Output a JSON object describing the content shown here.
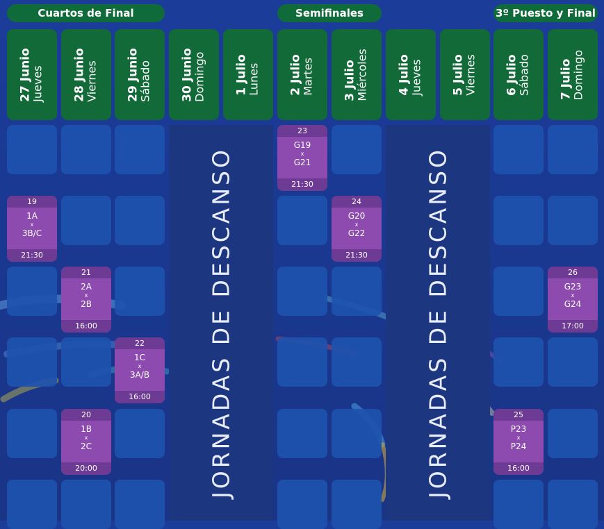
{
  "phases": {
    "quarterfinals": "Cuartos de Final",
    "semifinals": "Semifinales",
    "final": "3º Puesto y Final"
  },
  "days": [
    {
      "date": "27 Junio",
      "weekday": "Jueves"
    },
    {
      "date": "28 Junio",
      "weekday": "Viernes"
    },
    {
      "date": "29 Junio",
      "weekday": "Sábado"
    },
    {
      "date": "30 Junio",
      "weekday": "Domingo"
    },
    {
      "date": "1 Julio",
      "weekday": "Lunes"
    },
    {
      "date": "2 Julio",
      "weekday": "Martes"
    },
    {
      "date": "3 Julio",
      "weekday": "Miércoles"
    },
    {
      "date": "4 Julio",
      "weekday": "Jueves"
    },
    {
      "date": "5 Julio",
      "weekday": "Viernes"
    },
    {
      "date": "6 Julio",
      "weekday": "Sábado"
    },
    {
      "date": "7 Julio",
      "weekday": "Domingo"
    }
  ],
  "rest_label": "JORNADAS DE DESCANSO",
  "matches": [
    {
      "number": "19",
      "team1": "1A",
      "vs": "x",
      "team2": "3B/C",
      "time": "21:30"
    },
    {
      "number": "21",
      "team1": "2A",
      "vs": "x",
      "team2": "2B",
      "time": "16:00"
    },
    {
      "number": "22",
      "team1": "1C",
      "vs": "x",
      "team2": "3A/B",
      "time": "16:00"
    },
    {
      "number": "20",
      "team1": "1B",
      "vs": "x",
      "team2": "2C",
      "time": "20:00"
    },
    {
      "number": "23",
      "team1": "G19",
      "vs": "x",
      "team2": "G21",
      "time": "21:30"
    },
    {
      "number": "24",
      "team1": "G20",
      "vs": "x",
      "team2": "G22",
      "time": "21:30"
    },
    {
      "number": "26",
      "team1": "G23",
      "vs": "x",
      "team2": "G24",
      "time": "17:00"
    },
    {
      "number": "25",
      "team1": "P23",
      "vs": "x",
      "team2": "P24",
      "time": "16:00"
    }
  ],
  "colors": {
    "background": "#1b3a94",
    "header_green": "#126a38",
    "cell_blue": "#1d52ae",
    "match_purple": "#8d4bb0",
    "match_band": "#6d3a94",
    "rest_column": "#1d3680"
  }
}
